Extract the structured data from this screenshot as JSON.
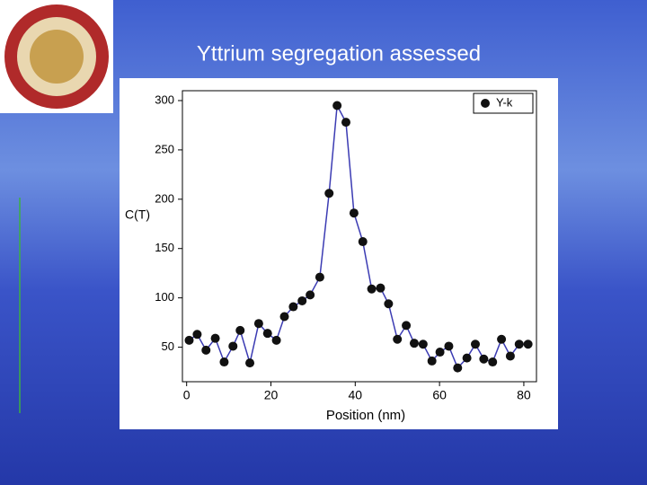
{
  "chart_data": {
    "type": "line",
    "title": "Yttrium segregation assessed",
    "xlabel": "Position (nm)",
    "ylabel": "C(T)",
    "x": [
      0.6,
      2.5,
      4.6,
      6.8,
      8.9,
      11,
      12.7,
      15,
      17.1,
      19.2,
      21.3,
      23.2,
      25.3,
      27.4,
      29.3,
      31.6,
      33.8,
      35.7,
      37.8,
      39.7,
      41.8,
      43.9,
      46,
      47.9,
      50,
      52.1,
      54,
      56.1,
      58.2,
      60.1,
      62.2,
      64.3,
      66.5,
      68.5,
      70.5,
      72.6,
      74.7,
      76.8,
      78.9,
      81
    ],
    "series": [
      {
        "name": "Y-k",
        "color": "#3b3bb3",
        "marker_color": "#111111",
        "values": [
          57,
          63,
          47,
          59,
          35,
          51,
          67,
          34,
          74,
          64,
          57,
          81,
          91,
          97,
          103,
          121,
          206,
          295,
          278,
          186,
          157,
          109,
          110,
          94,
          58,
          72,
          54,
          53,
          36,
          45,
          51,
          29,
          39,
          53,
          38,
          35,
          58,
          41,
          53,
          53
        ]
      }
    ],
    "xlim": [
      -1,
      83
    ],
    "ylim": [
      15,
      310
    ],
    "xticks": [
      0,
      20,
      40,
      60,
      80
    ],
    "yticks": [
      50,
      100,
      150,
      200,
      250,
      300
    ],
    "legend": "upper right"
  }
}
